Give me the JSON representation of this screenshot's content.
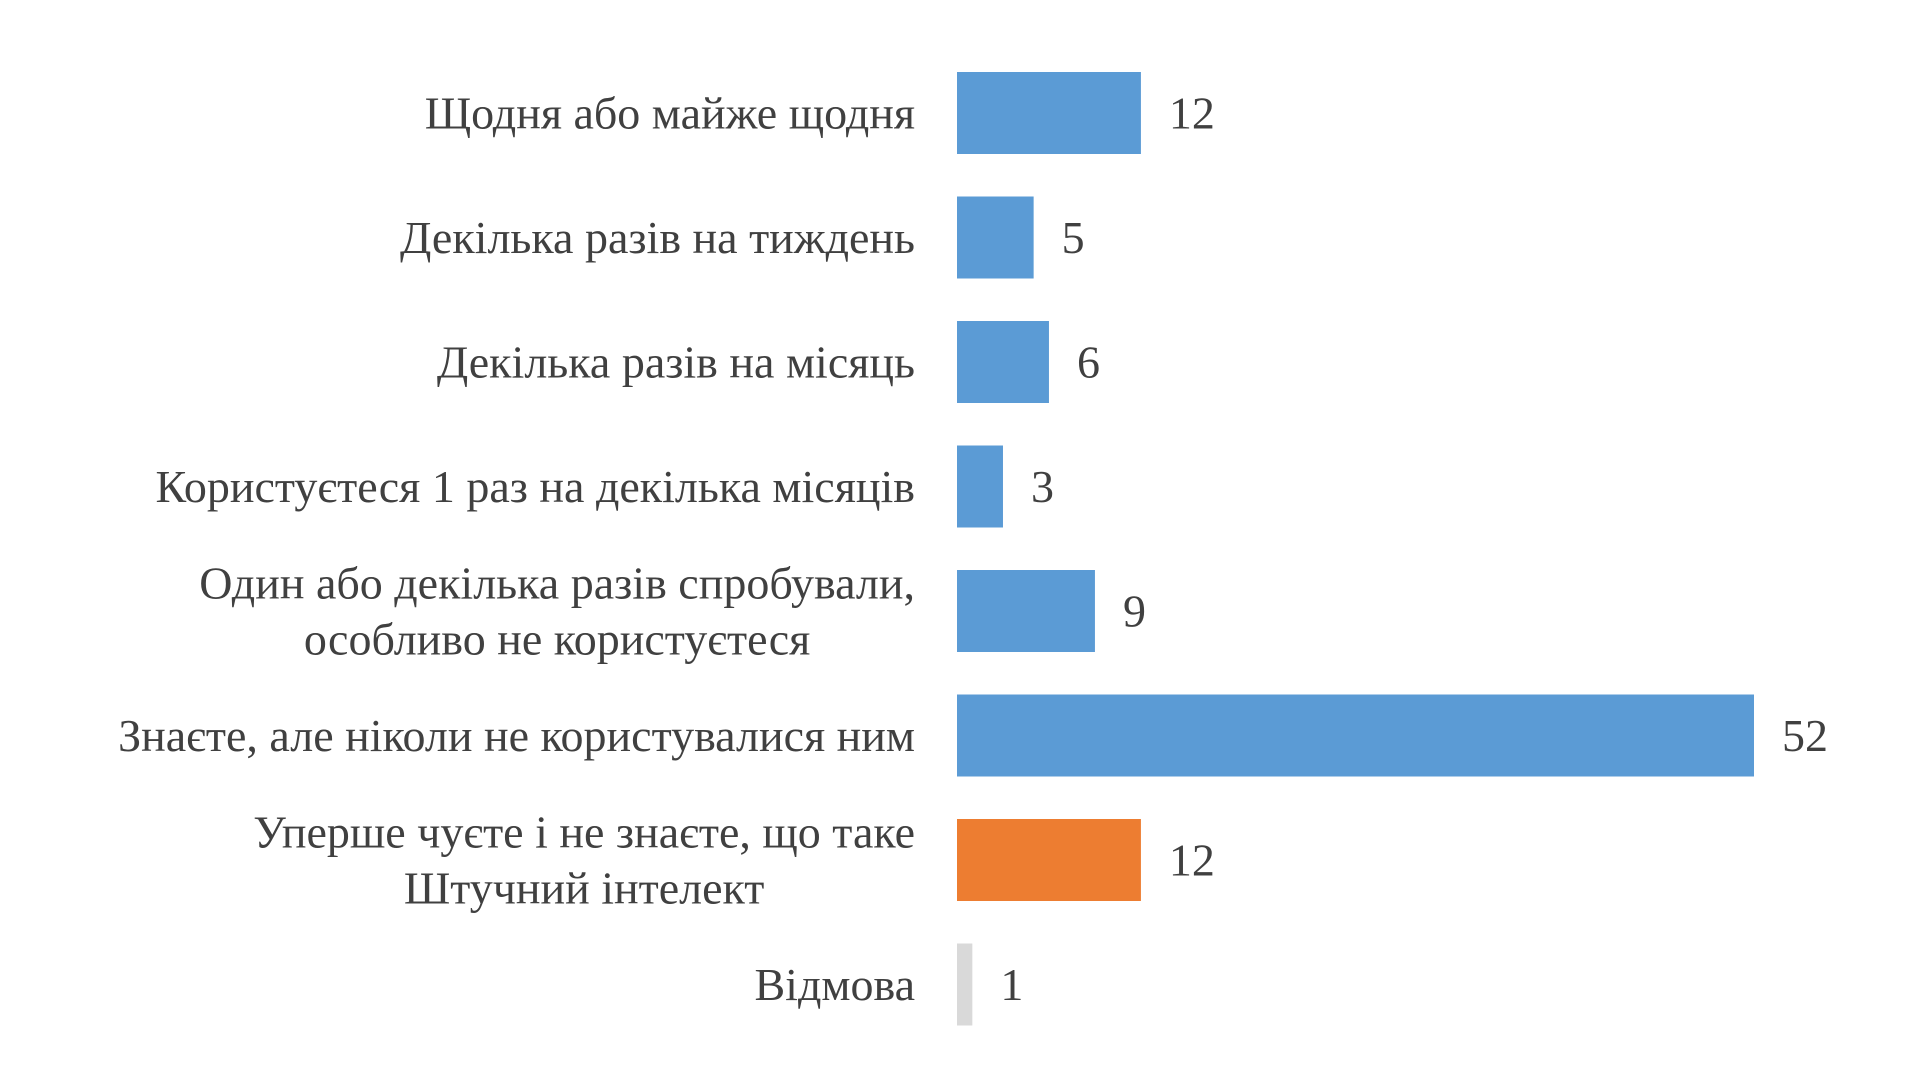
{
  "chart_data": {
    "type": "bar",
    "orientation": "horizontal",
    "categories": [
      [
        "Щодня або майже щодня"
      ],
      [
        "Декілька разів на тиждень"
      ],
      [
        "Декілька разів на місяць"
      ],
      [
        "Користуєтеся 1 раз на декілька місяців"
      ],
      [
        "Один або декілька разів спробували,",
        "особливо не користуєтеся"
      ],
      [
        "Знаєте, але ніколи не користувалися ним"
      ],
      [
        "Уперше чуєте і не знаєте, що таке",
        "Штучний інтелект"
      ],
      [
        "Відмова"
      ]
    ],
    "values": [
      12,
      5,
      6,
      3,
      9,
      52,
      12,
      1
    ],
    "value_labels": [
      "12",
      "5",
      "6",
      "3",
      "9",
      "52",
      "12",
      "1"
    ],
    "bar_colors": [
      "#5B9BD5",
      "#5B9BD5",
      "#5B9BD5",
      "#5B9BD5",
      "#5B9BD5",
      "#5B9BD5",
      "#ED7D31",
      "#D9D9D9"
    ],
    "value_label_colors": [
      "#404040",
      "#404040",
      "#404040",
      "#404040",
      "#404040",
      "#404040",
      "#404040",
      "#A6A6A6"
    ],
    "title": "",
    "xlabel": "",
    "ylabel": "",
    "xlim": [
      0,
      52
    ],
    "grid": false,
    "legend": "none"
  }
}
